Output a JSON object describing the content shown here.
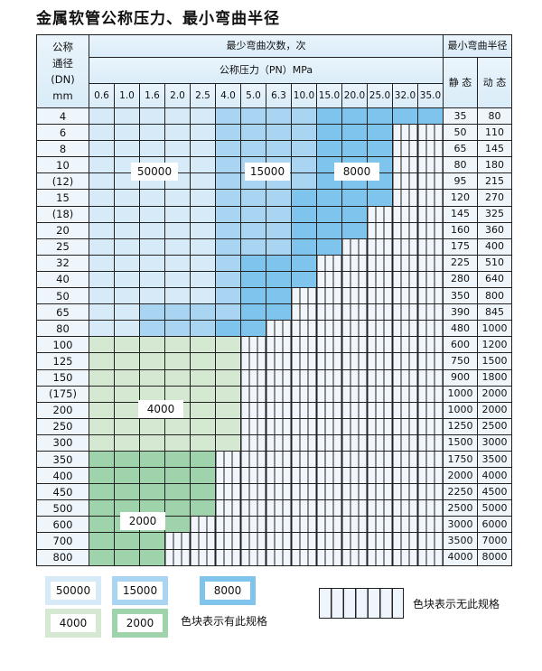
{
  "title": "金属软管公称压力、最小弯曲半径",
  "header": {
    "dn": [
      "公称",
      "通径",
      "(DN)",
      "mm"
    ],
    "cycles": "最少弯曲次数，次",
    "pressure": "公称压力（PN）MPa",
    "radius": "最小弯曲半径",
    "static": "静 态",
    "dynamic": "动 态",
    "pressures": [
      "0.6",
      "1.0",
      "1.6",
      "2.0",
      "2.5",
      "4.0",
      "5.0",
      "6.3",
      "10.0",
      "15.0",
      "20.0",
      "25.0",
      "32.0",
      "35.0"
    ]
  },
  "categories": {
    "A": "50000",
    "B": "15000",
    "C": "8000",
    "D": "4000",
    "E": "2000"
  },
  "colors": {
    "A": "#d6eaf8",
    "B": "#a9d5f2",
    "C": "#7ec4ec",
    "D": "#d4e8d2",
    "E": "#9fd3ab"
  },
  "rows": [
    {
      "dn": "4",
      "cells": "AAAAABBBBCCCCC",
      "static": "35",
      "dynamic": "80"
    },
    {
      "dn": "6",
      "cells": "AAAAABBBBCCC",
      "static": "50",
      "dynamic": "110"
    },
    {
      "dn": "8",
      "cells": "AAAAABBBBCCC",
      "static": "65",
      "dynamic": "145"
    },
    {
      "dn": "10",
      "cells": "AAAAABBBBCCC",
      "static": "80",
      "dynamic": "180"
    },
    {
      "dn": "(12)",
      "cells": "AAAAABBBBCCC",
      "static": "95",
      "dynamic": "215"
    },
    {
      "dn": "15",
      "cells": "AAAAABBBCCCC",
      "static": "120",
      "dynamic": "270"
    },
    {
      "dn": "(18)",
      "cells": "AAAAABBBCCC",
      "static": "145",
      "dynamic": "325"
    },
    {
      "dn": "20",
      "cells": "AAAAABBBCCC",
      "static": "160",
      "dynamic": "360"
    },
    {
      "dn": "25",
      "cells": "AAAAABBBCC",
      "static": "175",
      "dynamic": "400"
    },
    {
      "dn": "32",
      "cells": "AAAAABCCC",
      "static": "225",
      "dynamic": "510"
    },
    {
      "dn": "40",
      "cells": "AAAAABCCC",
      "static": "280",
      "dynamic": "640"
    },
    {
      "dn": "50",
      "cells": "AAAAABCC",
      "static": "350",
      "dynamic": "800"
    },
    {
      "dn": "65",
      "cells": "AABBBBCC",
      "static": "390",
      "dynamic": "845"
    },
    {
      "dn": "80",
      "cells": "AABBBCC",
      "static": "480",
      "dynamic": "1000"
    },
    {
      "dn": "100",
      "cells": "DDDDDD",
      "static": "600",
      "dynamic": "1200"
    },
    {
      "dn": "125",
      "cells": "DDDDDD",
      "static": "750",
      "dynamic": "1500"
    },
    {
      "dn": "150",
      "cells": "DDDDDD",
      "static": "900",
      "dynamic": "1800"
    },
    {
      "dn": "(175)",
      "cells": "DDDDDD",
      "static": "1000",
      "dynamic": "2000"
    },
    {
      "dn": "200",
      "cells": "DDDDDD",
      "static": "1000",
      "dynamic": "2000"
    },
    {
      "dn": "250",
      "cells": "DDDDDD",
      "static": "1250",
      "dynamic": "2500"
    },
    {
      "dn": "300",
      "cells": "DDDDDD",
      "static": "1500",
      "dynamic": "3000"
    },
    {
      "dn": "350",
      "cells": "EEEEE",
      "static": "1750",
      "dynamic": "3500"
    },
    {
      "dn": "400",
      "cells": "EEEEE",
      "static": "2000",
      "dynamic": "4000"
    },
    {
      "dn": "450",
      "cells": "EEEEE",
      "static": "2250",
      "dynamic": "4500"
    },
    {
      "dn": "500",
      "cells": "EEEEE",
      "static": "2500",
      "dynamic": "5000"
    },
    {
      "dn": "600",
      "cells": "EEEE",
      "static": "3000",
      "dynamic": "6000"
    },
    {
      "dn": "700",
      "cells": "EEE",
      "static": "3500",
      "dynamic": "7000"
    },
    {
      "dn": "800",
      "cells": "EEE",
      "static": "4000",
      "dynamic": "8000"
    }
  ],
  "legend": {
    "has_spec": "色块表示有此规格",
    "no_spec": "色块表示无此规格"
  }
}
